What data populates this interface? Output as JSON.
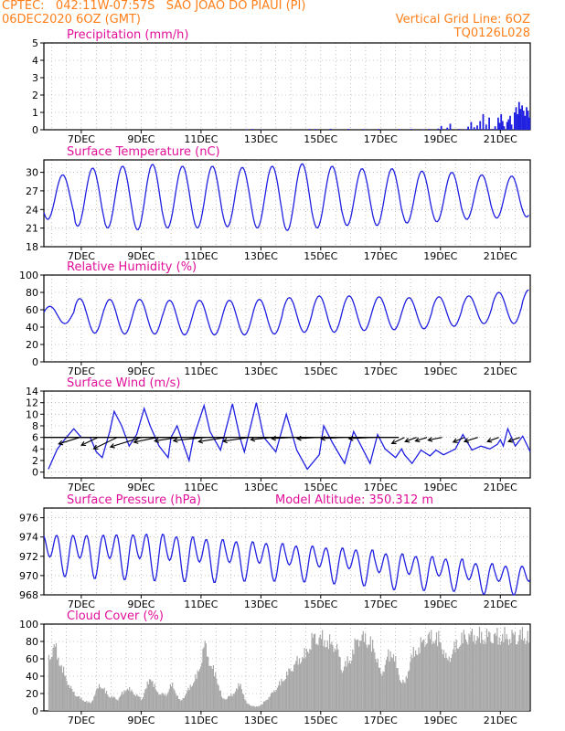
{
  "header": {
    "line1_left": "CPTEC:   042:11W-07:57S   SAO JOAO DO PIAUI (PI)",
    "line2_left": "06DEC2020 6OZ (GMT)",
    "line2_right": "Vertical Grid Line: 6OZ",
    "line3_right": "TQ0126L028"
  },
  "colors": {
    "header": "#ff7f1a",
    "title": "#e0109a",
    "series": "#2020e0",
    "cloud": "#a8a8a8",
    "arrow": "#000000",
    "ref_line": "#000000",
    "grid": "#9a9a9a"
  },
  "x_tick_labels": [
    "7DEC",
    "9DEC",
    "11DEC",
    "13DEC",
    "15DEC",
    "17DEC",
    "19DEC",
    "21DEC"
  ],
  "chart_data": [
    {
      "id": "precip",
      "type": "bar",
      "title": "Precipitation  (mm/h)",
      "ylim": [
        0,
        5
      ],
      "yticks": [
        0,
        1,
        2,
        3,
        4,
        5
      ],
      "bars": [
        [
          12.5,
          0.03
        ],
        [
          12.7,
          0.05
        ],
        [
          13.0,
          0.02
        ],
        [
          14.6,
          0.05
        ],
        [
          14.8,
          0.04
        ],
        [
          15.3,
          0.06
        ],
        [
          15.9,
          0.05
        ],
        [
          16.4,
          0.04
        ],
        [
          16.9,
          0.05
        ],
        [
          17.6,
          0.04
        ],
        [
          18.0,
          0.05
        ],
        [
          18.4,
          0.03
        ],
        [
          18.6,
          0.05
        ],
        [
          18.9,
          0.07
        ],
        [
          19.0,
          0.22
        ],
        [
          19.2,
          0.12
        ],
        [
          19.3,
          0.35
        ],
        [
          19.6,
          0.05
        ],
        [
          19.8,
          0.03
        ],
        [
          19.9,
          0.18
        ],
        [
          20.0,
          0.45
        ],
        [
          20.1,
          0.15
        ],
        [
          20.2,
          0.25
        ],
        [
          20.3,
          0.5
        ],
        [
          20.4,
          0.9
        ],
        [
          20.5,
          0.3
        ],
        [
          20.6,
          0.7
        ],
        [
          20.7,
          0.05
        ],
        [
          20.8,
          0.2
        ],
        [
          20.9,
          0.7
        ],
        [
          20.95,
          0.4
        ],
        [
          21.0,
          0.9
        ],
        [
          21.05,
          0.5
        ],
        [
          21.1,
          0.2
        ],
        [
          21.2,
          0.45
        ],
        [
          21.25,
          0.6
        ],
        [
          21.3,
          0.8
        ],
        [
          21.35,
          0.3
        ],
        [
          21.45,
          1.0
        ],
        [
          21.5,
          1.3
        ],
        [
          21.55,
          0.9
        ],
        [
          21.6,
          1.6
        ],
        [
          21.65,
          1.2
        ],
        [
          21.7,
          1.4
        ],
        [
          21.75,
          1.1
        ],
        [
          21.8,
          0.8
        ],
        [
          21.85,
          1.3
        ],
        [
          21.9,
          1.1
        ],
        [
          21.95,
          0.7
        ]
      ]
    },
    {
      "id": "temp",
      "type": "line",
      "title": "Surface Temperature (nC)",
      "ylim": [
        18,
        32
      ],
      "yticks": [
        18,
        21,
        24,
        27,
        30
      ],
      "mean": 26,
      "amp": [
        3.6,
        4.7,
        5.0,
        5.3,
        5.0,
        5.0,
        4.8,
        5.0,
        5.4,
        5.0,
        4.6,
        4.6,
        4.2,
        4.0,
        3.6,
        3.4,
        3.2,
        2.6,
        2.9
      ],
      "peak": 0.13
    },
    {
      "id": "rh",
      "type": "line",
      "title": "Relative Humidity (%)",
      "ylim": [
        0,
        100
      ],
      "yticks": [
        0,
        20,
        40,
        60,
        80,
        100
      ],
      "mean": [
        54,
        53,
        52,
        52,
        51,
        51,
        51,
        52,
        54,
        55,
        56,
        56,
        56,
        58,
        60,
        62,
        64,
        66,
        68
      ],
      "amp": [
        10,
        20,
        20,
        20,
        20,
        20,
        20,
        20,
        20,
        21,
        20,
        19,
        18,
        17,
        16,
        18,
        19,
        20,
        15
      ]
    },
    {
      "id": "wind",
      "type": "line",
      "title": "Surface Wind (m/s)",
      "ylim": [
        -1,
        14
      ],
      "yticks": [
        0,
        2,
        4,
        6,
        8,
        10,
        12,
        14
      ],
      "ref_value": 6,
      "ref_end": 17.6,
      "values": [
        [
          5.9,
          0.5
        ],
        [
          6.2,
          4
        ],
        [
          6.5,
          6
        ],
        [
          6.75,
          7.5
        ],
        [
          7.0,
          6
        ],
        [
          7.3,
          6
        ],
        [
          7.5,
          3.5
        ],
        [
          7.7,
          2.5
        ],
        [
          7.95,
          7
        ],
        [
          8.1,
          10.5
        ],
        [
          8.35,
          8
        ],
        [
          8.6,
          4.5
        ],
        [
          8.85,
          6.5
        ],
        [
          9.1,
          11
        ],
        [
          9.3,
          8
        ],
        [
          9.6,
          4.5
        ],
        [
          9.9,
          2.5
        ],
        [
          10.0,
          6
        ],
        [
          10.2,
          8
        ],
        [
          10.4,
          5
        ],
        [
          10.6,
          2
        ],
        [
          10.75,
          6
        ],
        [
          11.1,
          11.5
        ],
        [
          11.3,
          7
        ],
        [
          11.65,
          3.8
        ],
        [
          12.05,
          11.8
        ],
        [
          12.3,
          6
        ],
        [
          12.45,
          3.5
        ],
        [
          12.85,
          12
        ],
        [
          13.1,
          6
        ],
        [
          13.5,
          3.5
        ],
        [
          13.85,
          10
        ],
        [
          14.2,
          3.8
        ],
        [
          14.55,
          0.5
        ],
        [
          14.95,
          3
        ],
        [
          15.1,
          8
        ],
        [
          15.4,
          5
        ],
        [
          15.8,
          1.5
        ],
        [
          16.1,
          7
        ],
        [
          16.4,
          4
        ],
        [
          16.65,
          1.5
        ],
        [
          16.9,
          6.5
        ],
        [
          17.15,
          4
        ],
        [
          17.5,
          2.5
        ],
        [
          17.7,
          4
        ],
        [
          17.8,
          3
        ],
        [
          18.05,
          1.5
        ],
        [
          18.35,
          3.8
        ],
        [
          18.65,
          2.8
        ],
        [
          18.85,
          3.8
        ],
        [
          19.1,
          3
        ],
        [
          19.5,
          4
        ],
        [
          19.75,
          6.5
        ],
        [
          20.05,
          3.8
        ],
        [
          20.35,
          4.5
        ],
        [
          20.65,
          4
        ],
        [
          20.9,
          4.8
        ],
        [
          21.0,
          5.6
        ],
        [
          21.1,
          4.5
        ],
        [
          21.25,
          7.5
        ],
        [
          21.5,
          4.5
        ],
        [
          21.75,
          6.2
        ],
        [
          22.0,
          3.5
        ]
      ],
      "arrows": [
        [
          6.95,
          0.55,
          0.3
        ],
        [
          7.55,
          0.45,
          0.45
        ],
        [
          8.2,
          0.65,
          0.45
        ],
        [
          9.0,
          0.8,
          0.3
        ],
        [
          9.55,
          0.6,
          0.2
        ],
        [
          10.25,
          0.6,
          0.15
        ],
        [
          11.15,
          0.8,
          0.1
        ],
        [
          11.85,
          0.7,
          0.15
        ],
        [
          12.6,
          0.65,
          0.15
        ],
        [
          13.4,
          0.55,
          0.1
        ],
        [
          14.1,
          0.55,
          0.05
        ],
        [
          14.95,
          0.55,
          0.05
        ],
        [
          15.75,
          0.55,
          0.05
        ],
        [
          16.75,
          0.6,
          0.05
        ],
        [
          17.8,
          0.35,
          0.45
        ],
        [
          18.2,
          0.3,
          0.35
        ],
        [
          18.55,
          0.3,
          0.3
        ],
        [
          19.05,
          0.35,
          0.2
        ],
        [
          19.8,
          0.3,
          0.4
        ],
        [
          20.25,
          0.35,
          0.3
        ],
        [
          20.95,
          0.3,
          0.35
        ],
        [
          21.65,
          0.3,
          0.35
        ]
      ]
    },
    {
      "id": "pres",
      "type": "line",
      "title": "Surface Pressure (hPa)",
      "annotation": "Model Altitude: 350.312  m",
      "ylim": [
        968,
        977
      ],
      "yticks": [
        968,
        970,
        972,
        974,
        976
      ],
      "mean": [
        972.5,
        972.4,
        972.4,
        972.4,
        972.2,
        972.0,
        971.9,
        971.8,
        971.6,
        971.4,
        971.2,
        970.8,
        970.6,
        970.4,
        970.0,
        969.8,
        969.8,
        969.8,
        969.6
      ],
      "amp": [
        2.3,
        2.4,
        2.5,
        2.6,
        2.5,
        2.4,
        2.2,
        2.1,
        2.0,
        2.0,
        2.0,
        2.0,
        1.9,
        1.8,
        1.7,
        1.6,
        1.6,
        1.5,
        1.5
      ]
    },
    {
      "id": "cloud",
      "type": "area",
      "title": "Cloud Cover (%)",
      "ylim": [
        0,
        100
      ],
      "yticks": [
        0,
        20,
        40,
        60,
        80,
        100
      ],
      "envelope": [
        [
          5.9,
          70
        ],
        [
          6.1,
          85
        ],
        [
          6.3,
          60
        ],
        [
          6.5,
          40
        ],
        [
          6.7,
          25
        ],
        [
          7.0,
          15
        ],
        [
          7.3,
          10
        ],
        [
          7.6,
          35
        ],
        [
          7.9,
          20
        ],
        [
          8.2,
          15
        ],
        [
          8.5,
          30
        ],
        [
          8.7,
          25
        ],
        [
          9.0,
          15
        ],
        [
          9.3,
          45
        ],
        [
          9.5,
          25
        ],
        [
          9.8,
          20
        ],
        [
          10.0,
          35
        ],
        [
          10.3,
          12
        ],
        [
          10.6,
          30
        ],
        [
          10.9,
          50
        ],
        [
          11.1,
          88
        ],
        [
          11.3,
          60
        ],
        [
          11.5,
          45
        ],
        [
          11.7,
          15
        ],
        [
          12.0,
          20
        ],
        [
          12.3,
          35
        ],
        [
          12.5,
          10
        ],
        [
          12.8,
          5
        ],
        [
          13.0,
          8
        ],
        [
          13.3,
          20
        ],
        [
          13.6,
          35
        ],
        [
          14.0,
          55
        ],
        [
          14.2,
          65
        ],
        [
          14.5,
          75
        ],
        [
          14.7,
          95
        ],
        [
          15.0,
          95
        ],
        [
          15.2,
          90
        ],
        [
          15.5,
          85
        ],
        [
          15.7,
          55
        ],
        [
          16.0,
          70
        ],
        [
          16.2,
          95
        ],
        [
          16.5,
          95
        ],
        [
          16.8,
          80
        ],
        [
          17.0,
          45
        ],
        [
          17.2,
          70
        ],
        [
          17.4,
          78
        ],
        [
          17.6,
          45
        ],
        [
          17.8,
          35
        ],
        [
          18.0,
          70
        ],
        [
          18.3,
          85
        ],
        [
          18.5,
          95
        ],
        [
          18.8,
          97
        ],
        [
          19.0,
          90
        ],
        [
          19.2,
          65
        ],
        [
          19.5,
          85
        ],
        [
          19.8,
          98
        ],
        [
          20.1,
          98
        ],
        [
          20.4,
          97
        ],
        [
          20.7,
          98
        ],
        [
          21.0,
          97
        ],
        [
          21.3,
          97
        ],
        [
          21.6,
          98
        ],
        [
          22.0,
          99
        ]
      ]
    }
  ]
}
